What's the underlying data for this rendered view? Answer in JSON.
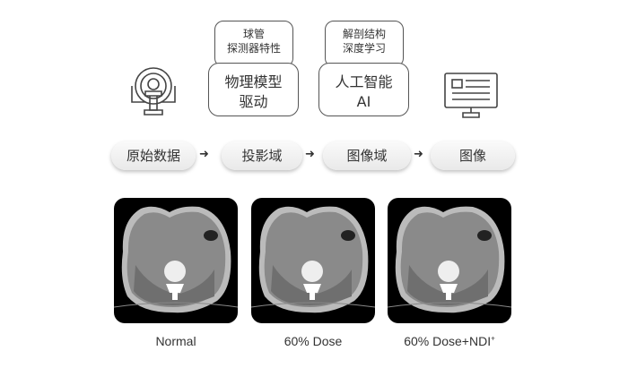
{
  "scanner_icon": "ct-scanner-icon",
  "monitor_icon": "monitor-icon",
  "module1": {
    "sub_line1": "球管",
    "sub_line2": "探测器特性",
    "main_line1": "物理模型",
    "main_line2": "驱动"
  },
  "module2": {
    "sub_line1": "解剖结构",
    "sub_line2": "深度学习",
    "main_line1": "人工智能",
    "main_line2": "AI"
  },
  "pipeline": [
    "原始数据",
    "投影域",
    "图像域",
    "图像"
  ],
  "images": [
    {
      "caption": "Normal"
    },
    {
      "caption": "60% Dose"
    },
    {
      "caption": "60% Dose+NDI",
      "sup": "+"
    }
  ]
}
